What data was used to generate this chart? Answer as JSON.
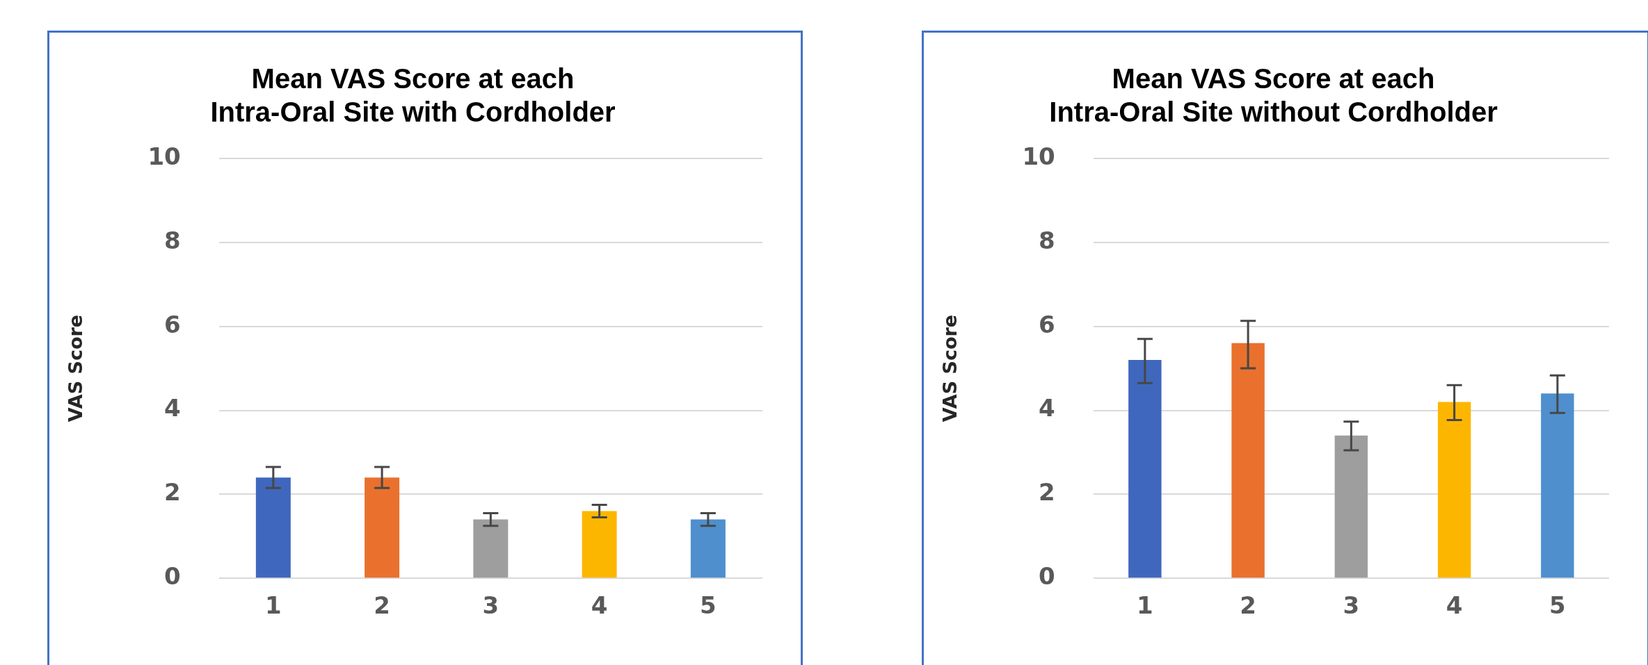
{
  "chart_data": [
    {
      "type": "bar",
      "title": "Mean VAS Score at each\nIntra-Oral Site with Cordholder",
      "ylabel": "VAS Score",
      "categories": [
        "1",
        "2",
        "3",
        "4",
        "5"
      ],
      "values": [
        2.4,
        2.4,
        1.4,
        1.6,
        1.4
      ],
      "colors": [
        "#3f67bd",
        "#e9712d",
        "#9e9e9e",
        "#fdb600",
        "#4f8fce"
      ],
      "errors": [
        0.25,
        0.25,
        0.15,
        0.15,
        0.15
      ],
      "ylim": [
        0,
        10
      ],
      "yticks": [
        0,
        2,
        4,
        6,
        8,
        10
      ],
      "grid": "y"
    },
    {
      "type": "bar",
      "title": "Mean VAS Score at each\nIntra-Oral Site without Cordholder",
      "ylabel": "VAS Score",
      "categories": [
        "1",
        "2",
        "3",
        "4",
        "5"
      ],
      "values": [
        5.2,
        5.6,
        3.4,
        4.2,
        4.4
      ],
      "colors": [
        "#3f67bd",
        "#e9712d",
        "#9e9e9e",
        "#fdb600",
        "#4f8fce"
      ],
      "errors": [
        [
          4.65,
          5.7
        ],
        [
          5.0,
          6.13
        ],
        [
          3.05,
          3.73
        ],
        [
          3.77,
          4.6
        ],
        [
          3.94,
          4.83
        ]
      ],
      "ylim": [
        0,
        10
      ],
      "yticks": [
        0,
        2,
        4,
        6,
        8,
        10
      ],
      "grid": "y"
    }
  ]
}
